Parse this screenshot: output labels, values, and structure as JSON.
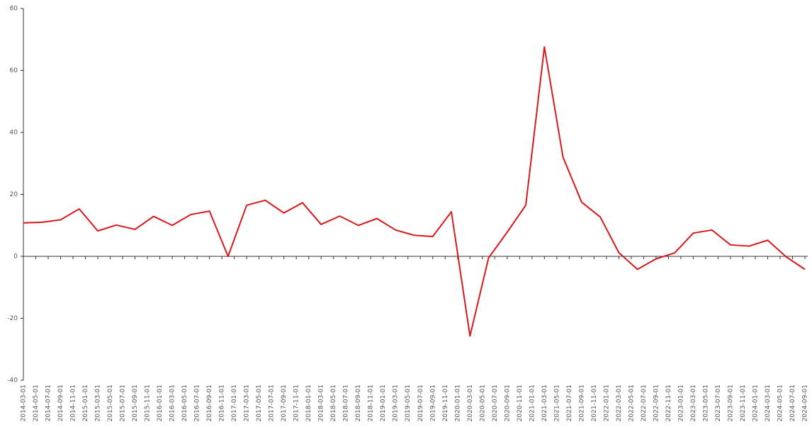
{
  "chart_data": {
    "type": "line",
    "x": [
      "2014-03-01",
      "2014-06-01",
      "2014-09-01",
      "2014-12-01",
      "2015-03-01",
      "2015-06-01",
      "2015-09-01",
      "2015-12-01",
      "2016-03-01",
      "2016-06-01",
      "2016-09-01",
      "2016-12-01",
      "2017-03-01",
      "2017-06-01",
      "2017-09-01",
      "2017-12-01",
      "2018-03-01",
      "2018-06-01",
      "2018-09-01",
      "2018-12-01",
      "2019-03-01",
      "2019-06-01",
      "2019-09-01",
      "2019-12-01",
      "2020-03-01",
      "2020-06-01",
      "2020-09-01",
      "2020-12-01",
      "2021-03-01",
      "2021-06-01",
      "2021-09-01",
      "2021-12-01",
      "2022-03-01",
      "2022-06-01",
      "2022-09-01",
      "2022-12-01",
      "2023-03-01",
      "2023-06-01",
      "2023-09-01",
      "2023-12-01",
      "2024-03-01",
      "2024-06-01",
      "2024-09-01"
    ],
    "series": [
      {
        "color": "#d7191c",
        "values": [
          10.8,
          11,
          11.8,
          15.3,
          8.2,
          10.1,
          8.7,
          12.9,
          10,
          13.5,
          14.6,
          0,
          16.5,
          18.1,
          14,
          17.3,
          10.3,
          13,
          10,
          12.2,
          8.5,
          6.8,
          6.4,
          14.4,
          -25.7,
          -0.5,
          7.8,
          16.5,
          67.6,
          32,
          17.5,
          12.7,
          1.2,
          -4.2,
          -0.8,
          1.1,
          7.5,
          8.5,
          3.7,
          3.3,
          5.2,
          -0.2,
          -4.2
        ]
      }
    ],
    "xlim": [
      "2014-03-01",
      "2024-09-01"
    ],
    "xticks": [
      "2014-03-01",
      "2014-05-01",
      "2014-07-01",
      "2014-09-01",
      "2014-11-01",
      "2015-01-01",
      "2015-03-01",
      "2015-05-01",
      "2015-07-01",
      "2015-09-01",
      "2015-11-01",
      "2016-01-01",
      "2016-03-01",
      "2016-05-01",
      "2016-07-01",
      "2016-09-01",
      "2016-11-01",
      "2017-01-01",
      "2017-03-01",
      "2017-05-01",
      "2017-07-01",
      "2017-09-01",
      "2017-11-01",
      "2018-01-01",
      "2018-03-01",
      "2018-05-01",
      "2018-07-01",
      "2018-09-01",
      "2018-11-01",
      "2019-01-01",
      "2019-03-01",
      "2019-05-01",
      "2019-07-01",
      "2019-09-01",
      "2019-11-01",
      "2020-01-01",
      "2020-03-01",
      "2020-05-01",
      "2020-07-01",
      "2020-09-01",
      "2020-11-01",
      "2021-01-01",
      "2021-03-01",
      "2021-05-01",
      "2021-07-01",
      "2021-09-01",
      "2021-11-01",
      "2022-01-01",
      "2022-03-01",
      "2022-05-01",
      "2022-07-01",
      "2022-09-01",
      "2022-11-01",
      "2023-01-01",
      "2023-03-01",
      "2023-05-01",
      "2023-07-01",
      "2023-09-01",
      "2023-11-01",
      "2024-01-01",
      "2024-03-01",
      "2024-05-01",
      "2024-07-01",
      "2024-09-01"
    ],
    "ylim": [
      -40,
      80
    ],
    "yticks": [
      -40,
      -20,
      0,
      20,
      40,
      60,
      80
    ],
    "grid": false
  }
}
